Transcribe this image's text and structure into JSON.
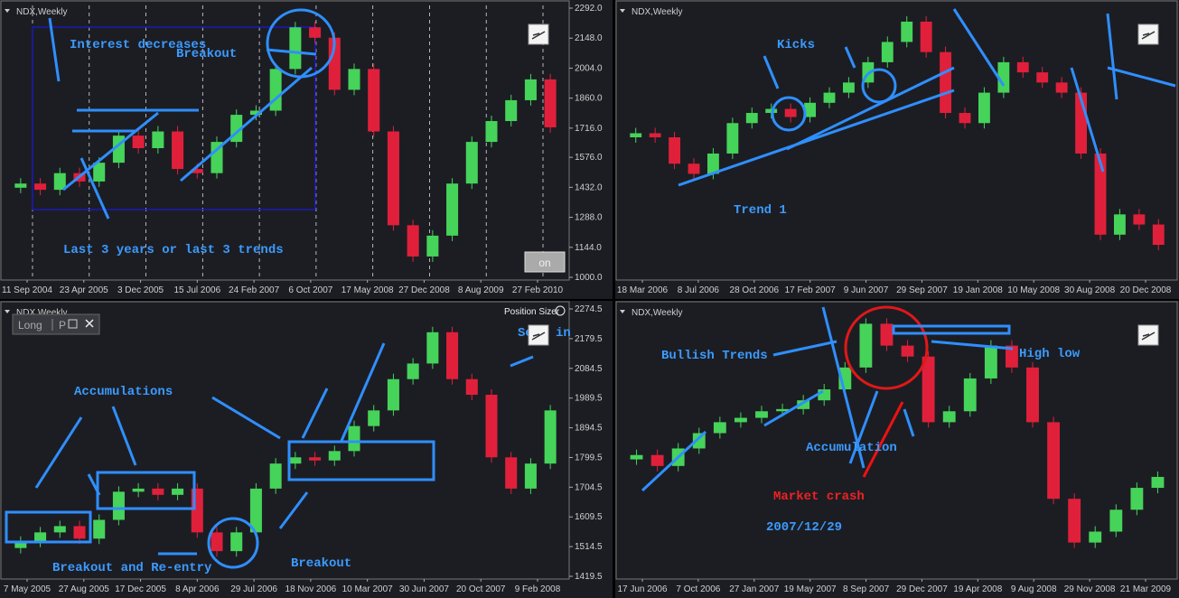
{
  "panels": [
    {
      "symbol": "NDX,Weekly",
      "x_labels": [
        "11 Sep 2004",
        "23 Apr 2005",
        "3 Dec 2005",
        "15 Jul 2006",
        "24 Feb 2007",
        "6 Oct 2007",
        "17 May 2008",
        "27 Dec 2008",
        "8 Aug 2009",
        "27 Feb 2010"
      ],
      "ylim": [
        1000,
        2292
      ],
      "yticks": [
        {
          "value": 2292,
          "label": "2292.0"
        },
        {
          "value": 2148,
          "label": "2148.0"
        },
        {
          "value": 2004,
          "label": "2004.0"
        },
        {
          "value": 1860,
          "label": "1860.0"
        },
        {
          "value": 1716,
          "label": "1716.0"
        },
        {
          "value": 1576,
          "label": "1576.0"
        },
        {
          "value": 1432,
          "label": "1432.0"
        },
        {
          "value": 1288,
          "label": "1288.0"
        },
        {
          "value": 1144,
          "label": "1144.0"
        },
        {
          "value": 1000,
          "label": "1000.0"
        }
      ],
      "price": [
        1450,
        1420,
        1500,
        1460,
        1550,
        1680,
        1620,
        1700,
        1520,
        1500,
        1650,
        1780,
        1800,
        2000,
        2200,
        2150,
        1900,
        2000,
        1700,
        1250,
        1100,
        1200,
        1450,
        1650,
        1750,
        1850,
        1950,
        1720
      ],
      "annotations": [
        "Interest decreases",
        "Breakout",
        "Last 3 years or last 3 trends"
      ],
      "button": "on"
    },
    {
      "symbol": "NDX,Weekly",
      "x_labels": [
        "18 Mar 2006",
        "8 Jul 2006",
        "28 Oct 2006",
        "17 Feb 2007",
        "9 Jun 2007",
        "29 Sep 2007",
        "19 Jan 2008",
        "10 May 2008",
        "30 Aug 2008",
        "20 Dec 2008"
      ],
      "price": [
        1700,
        1680,
        1550,
        1500,
        1600,
        1750,
        1800,
        1820,
        1780,
        1850,
        1900,
        1950,
        2050,
        2150,
        2250,
        2100,
        1800,
        1750,
        1900,
        2050,
        2000,
        1950,
        1900,
        1600,
        1200,
        1300,
        1250,
        1150
      ],
      "annotations": [
        "Kicks",
        "Trend 1"
      ]
    },
    {
      "symbol": "NDX,Weekly",
      "x_labels": [
        "7 May 2005",
        "27 Aug 2005",
        "17 Dec 2005",
        "8 Apr 2006",
        "29 Jul 2006",
        "18 Nov 2006",
        "10 Mar 2007",
        "30 Jun 2007",
        "20 Oct 2007",
        "9 Feb 2008"
      ],
      "ylim": [
        1419.5,
        2274.5
      ],
      "yticks": [
        2274.5,
        2179.5,
        2084.5,
        1989.5,
        1894.5,
        1799.5,
        1704.5,
        1609.5,
        1514.5,
        1419.5
      ],
      "price": [
        1530,
        1560,
        1580,
        1540,
        1600,
        1690,
        1700,
        1680,
        1700,
        1560,
        1500,
        1560,
        1700,
        1780,
        1800,
        1790,
        1820,
        1900,
        1950,
        2050,
        2100,
        2200,
        2050,
        2000,
        1800,
        1700,
        1780,
        1950
      ],
      "annotations": [
        "Accumulations",
        "Breakout and Re-entry",
        "Breakout",
        "Sell in"
      ],
      "indicator": "Position Sizer",
      "widget": [
        "Long",
        "P"
      ]
    },
    {
      "symbol": "NDX,Weekly",
      "x_labels": [
        "17 Jun 2006",
        "7 Oct 2006",
        "27 Jan 2007",
        "19 May 2007",
        "8 Sep 2007",
        "29 Dec 2007",
        "19 Apr 2008",
        "9 Aug 2008",
        "29 Nov 2008",
        "21 Mar 2009"
      ],
      "price": [
        1550,
        1500,
        1580,
        1650,
        1700,
        1720,
        1750,
        1760,
        1800,
        1850,
        1950,
        2150,
        2050,
        2000,
        1700,
        1750,
        1900,
        2050,
        1950,
        1700,
        1350,
        1150,
        1200,
        1300,
        1400,
        1450
      ],
      "annotations": [
        "Bullish Trends",
        "High low",
        "Accumulation",
        "Market crash",
        "2007/12/29"
      ]
    }
  ]
}
